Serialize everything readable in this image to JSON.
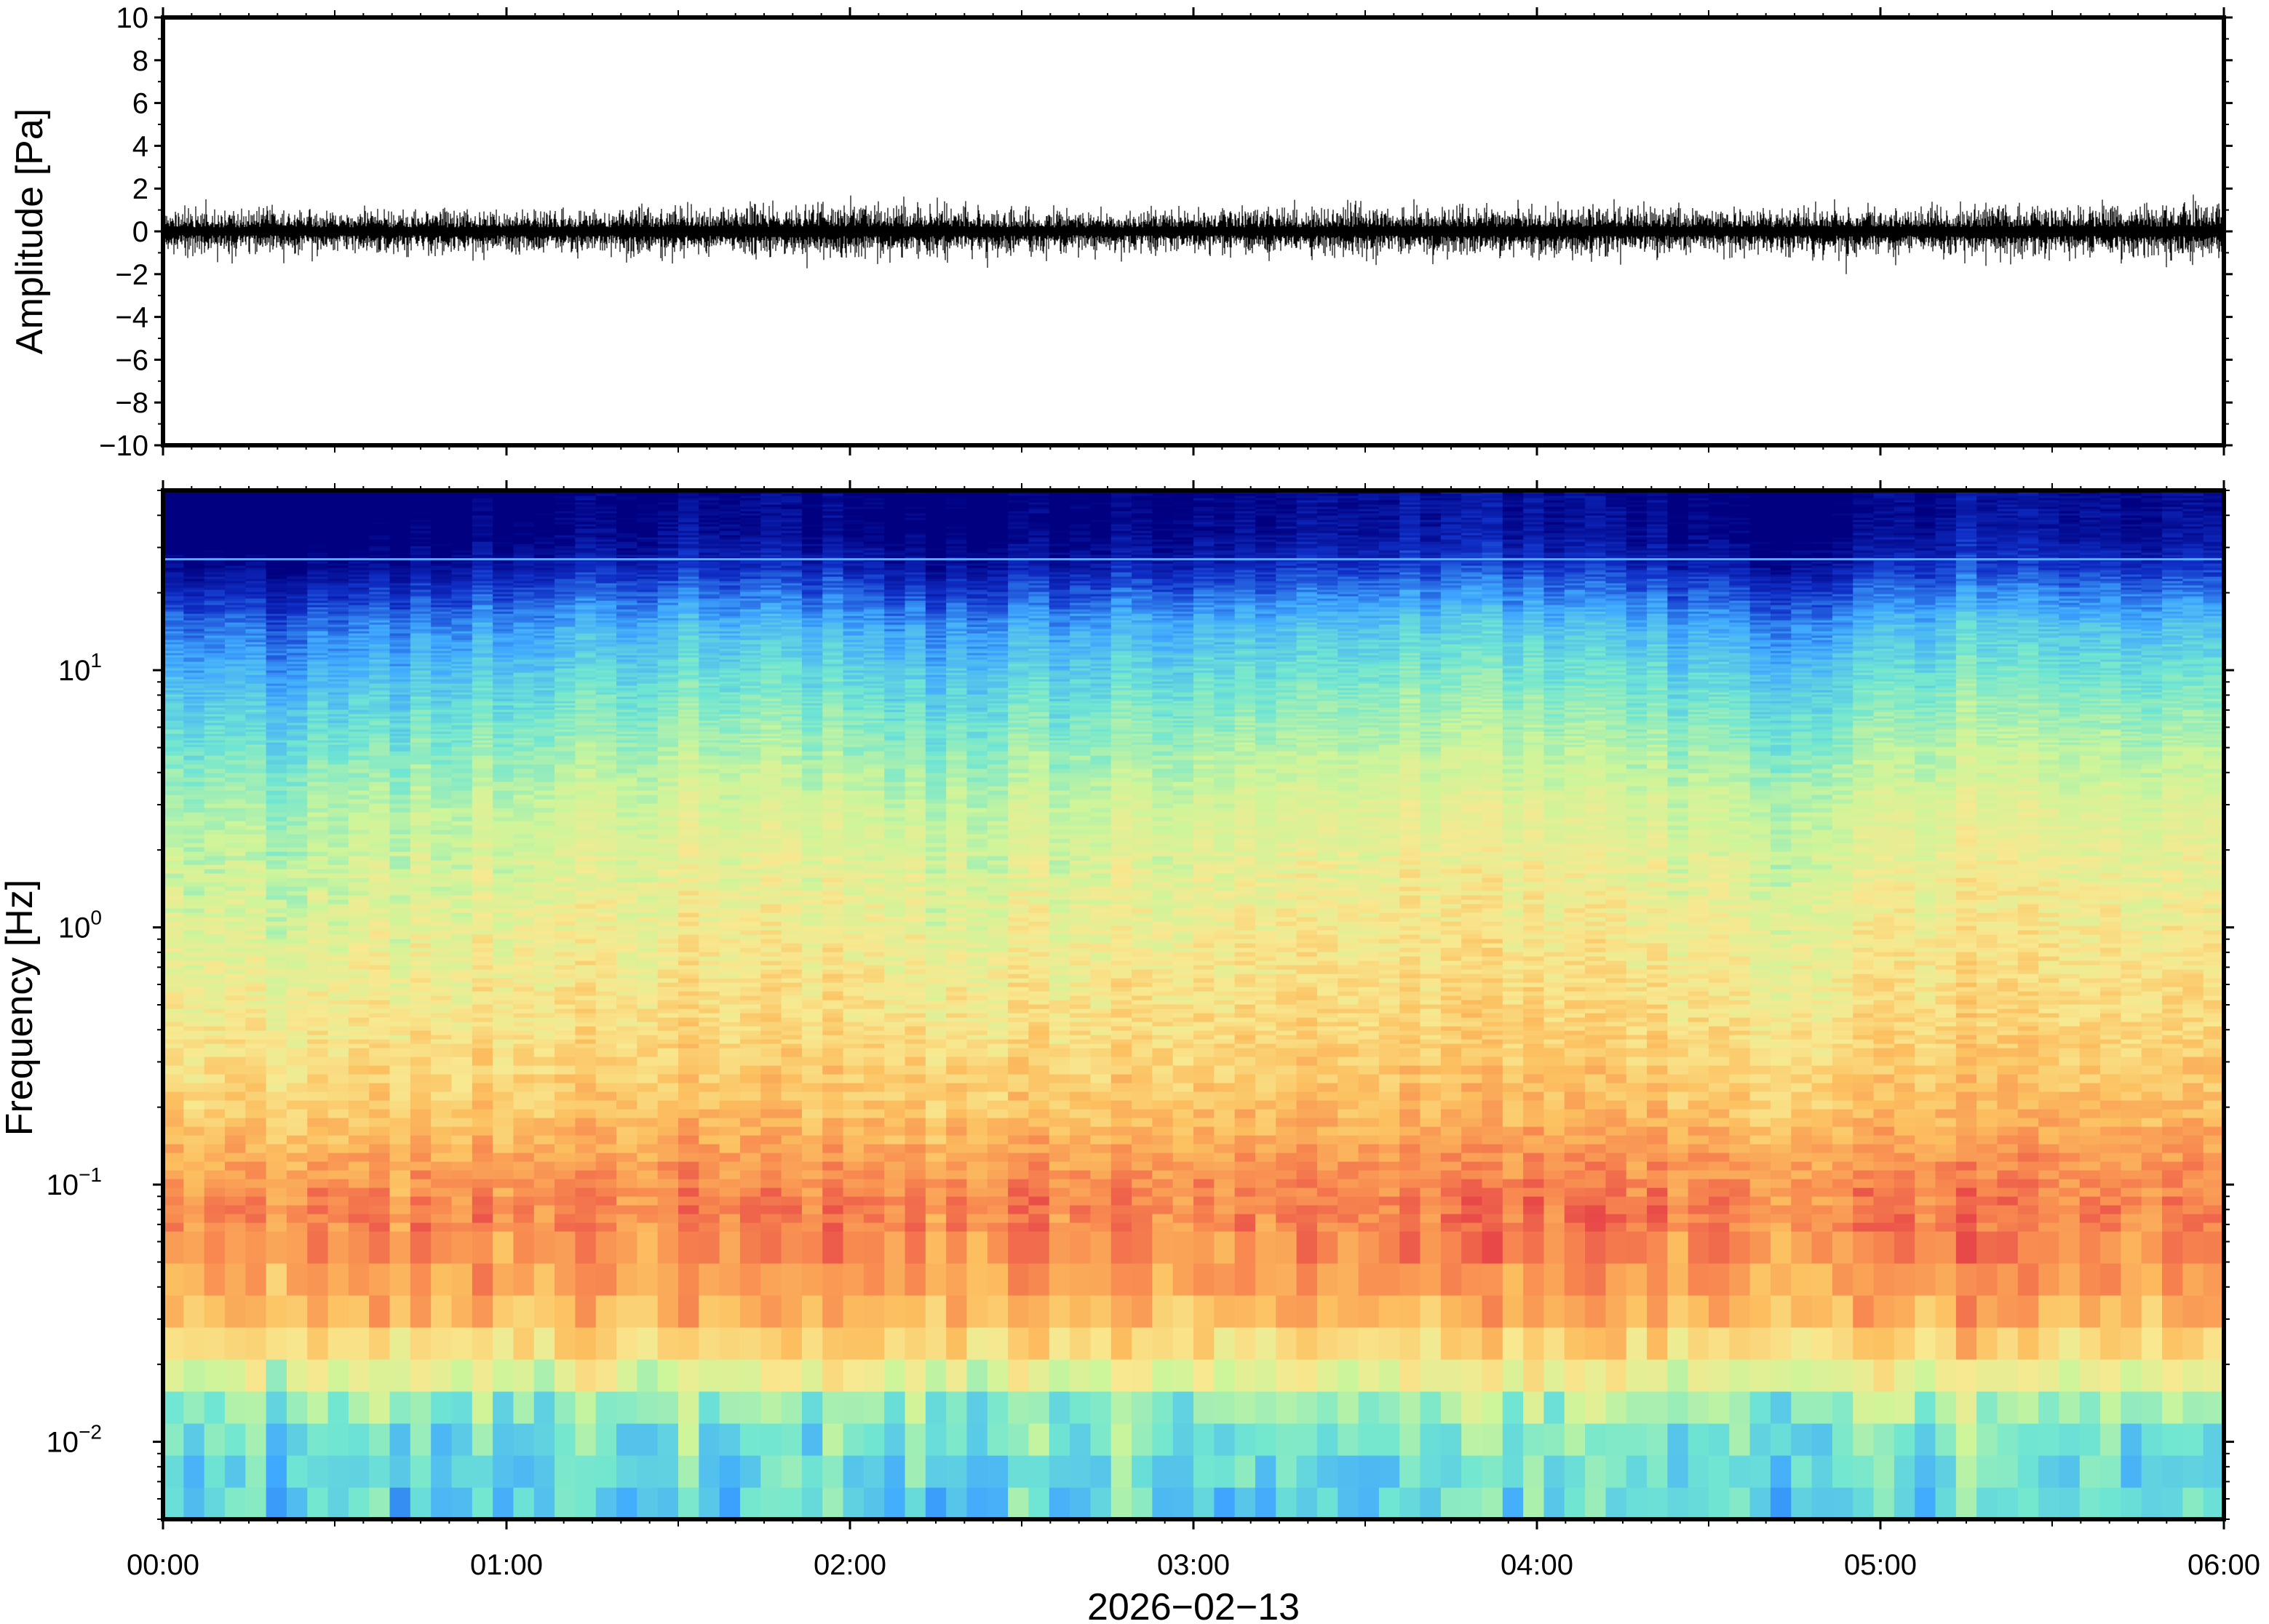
{
  "chart_data": [
    {
      "type": "line",
      "title": "",
      "xlabel": "",
      "ylabel": "Amplitude [Pa]",
      "xlim": [
        "00:00",
        "06:00"
      ],
      "ylim": [
        -10,
        10
      ],
      "yticks": [
        -10,
        -8,
        -6,
        -4,
        -2,
        0,
        2,
        4,
        6,
        8,
        10
      ],
      "ytick_labels": [
        "−10",
        "−8",
        "−6",
        "−4",
        "−2",
        "0",
        "2",
        "4",
        "6",
        "8",
        "10"
      ],
      "grid": false,
      "series": [
        {
          "color": "#000000",
          "description_values": "noise trace centred on 0 Pa, typical envelope",
          "x": [
            "00:00",
            "00:30",
            "01:00",
            "01:30",
            "02:00",
            "02:30",
            "03:00",
            "03:30",
            "04:00",
            "04:30",
            "05:00",
            "05:30",
            "06:00"
          ],
          "envelope": [
            0.7,
            0.75,
            0.7,
            0.8,
            0.9,
            0.75,
            0.7,
            0.8,
            0.85,
            0.75,
            0.8,
            0.85,
            0.9
          ],
          "peaks": [
            {
              "x": "00:26",
              "value": -1.4
            },
            {
              "x": "01:29",
              "value": -1.5
            },
            {
              "x": "02:05",
              "value": 1.4
            },
            {
              "x": "02:24",
              "value": -1.7
            },
            {
              "x": "04:54",
              "value": -2.0
            },
            {
              "x": "04:52",
              "value": 1.5
            },
            {
              "x": "05:53",
              "value": 1.3
            }
          ]
        }
      ]
    },
    {
      "type": "heatmap",
      "title": "",
      "xlabel": "2026−02−13",
      "ylabel": "Frequency [Hz]",
      "xlim": [
        "00:00",
        "06:00"
      ],
      "ylim": [
        0.005,
        50
      ],
      "yscale": "log",
      "xticks": [
        "00:00",
        "01:00",
        "02:00",
        "03:00",
        "04:00",
        "05:00",
        "06:00"
      ],
      "yticks": [
        {
          "value": 0.01,
          "base": "10",
          "exp": "−2"
        },
        {
          "value": 0.1,
          "base": "10",
          "exp": "−1"
        },
        {
          "value": 1,
          "base": "10",
          "exp": "0"
        },
        {
          "value": 10,
          "base": "10",
          "exp": "1"
        }
      ],
      "colormap": "jet (blue = low power, red = high power)",
      "colors": [
        "#000080",
        "#1030c8",
        "#3fa8ff",
        "#70e6d2",
        "#cdf59a",
        "#f8e890",
        "#fcc060",
        "#f88a50",
        "#e84848"
      ],
      "grid": false,
      "legend": "none",
      "power_profile_by_frequency": [
        {
          "freq_hz": 0.005,
          "level": 0.34
        },
        {
          "freq_hz": 0.01,
          "level": 0.38
        },
        {
          "freq_hz": 0.015,
          "level": 0.46
        },
        {
          "freq_hz": 0.02,
          "level": 0.62
        },
        {
          "freq_hz": 0.03,
          "level": 0.76
        },
        {
          "freq_hz": 0.05,
          "level": 0.86
        },
        {
          "freq_hz": 0.08,
          "level": 0.9
        },
        {
          "freq_hz": 0.12,
          "level": 0.84
        },
        {
          "freq_hz": 0.2,
          "level": 0.74
        },
        {
          "freq_hz": 0.4,
          "level": 0.67
        },
        {
          "freq_hz": 1,
          "level": 0.6
        },
        {
          "freq_hz": 3,
          "level": 0.52
        },
        {
          "freq_hz": 8,
          "level": 0.38
        },
        {
          "freq_hz": 15,
          "level": 0.27
        },
        {
          "freq_hz": 22,
          "level": 0.15
        },
        {
          "freq_hz": 27,
          "level": 0.07
        },
        {
          "freq_hz": 35,
          "level": 0.02
        },
        {
          "freq_hz": 50,
          "level": 0.0
        }
      ],
      "narrowband_line_hz": 27,
      "time_variation": [
        {
          "t": "00:00",
          "offset": -0.04
        },
        {
          "t": "00:25",
          "offset": -0.06
        },
        {
          "t": "01:00",
          "offset": -0.01
        },
        {
          "t": "01:40",
          "offset": 0.02
        },
        {
          "t": "02:15",
          "offset": -0.03
        },
        {
          "t": "03:00",
          "offset": 0.01
        },
        {
          "t": "03:40",
          "offset": 0.04
        },
        {
          "t": "04:20",
          "offset": 0.0
        },
        {
          "t": "04:45",
          "offset": -0.03
        },
        {
          "t": "05:15",
          "offset": 0.03
        },
        {
          "t": "06:00",
          "offset": 0.02
        }
      ]
    }
  ]
}
